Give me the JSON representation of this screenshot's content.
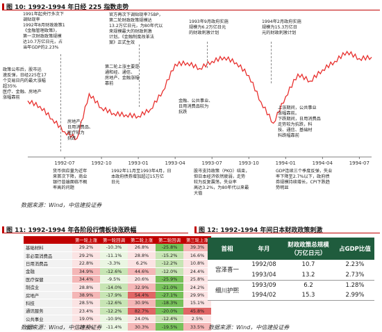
{
  "fig10": {
    "title": "图 10: 1992-1994 年日经 225 指数走势",
    "source": "数据来源：Wind，中信建投证券",
    "annotations": {
      "a1": "1991年起央行多次下\n调贴现率\n1992年8月财政政策1\n《金融管理政策》，\n第一次财政政策规模\n达10.7万亿日元，占\n当年GDP的2.23%",
      "a2": "官方再次下调贴现率75BP，\n第二轮财政政策规模达\n13.2万亿日元，为80年代以\n来规模最大的财政刺激\n计划。《金融制度改革法\n案》正式生效",
      "a3": "1993年9月政府实施\n规模为6.2万亿日元\n的财政刺激计划",
      "a4": "1994年2月政府实施\n规模为15.3万亿日\n元的财政刺激计划",
      "a5": "政策公布后，股市迅\n速反弹，日经225在17\n个交易日内的最大涨幅\n超35%\n医疗、金融、房地产\n涨幅靠前",
      "a6": "第二轮上涨主要是\n通和经、通信、\n房地产、金融涨幅\n靠前",
      "a7": "金融、公共事业、\n日用消费品较为\n抗跌",
      "a8": "房地产、\n日用消费品、\n医疗较为\n抗跌",
      "a9": "上涨期间，公共事业\n涨幅靠前。\n下跌期间，日用消费品\n走势较为抗跌，科\n技、通信、基础材\n料跌幅靠前",
      "b1": "货币供应量为近年\n来首次下降，商业\n银行普遍面临不概\n率高的问题",
      "b2": "1992年11月至1993年4月，日\n本政府债券增加超过15万亿\n日元",
      "b3": "股市支持政策（PKO）结束，\n但日本经济依然疲弱，走势\n较为反复震荡，失业率\n高达3.2%，为80年代以来最\n大值",
      "b4": "GDP连续三个季度反弹，失业\n率下降至2.7%以下，政府债\n券规模持续增长，CPI下跌趋\n势明显"
    },
    "chart_data": {
      "type": "line",
      "x": [
        "1992-04",
        "1992-05",
        "1992-06",
        "1992-07",
        "1992-08",
        "1992-09",
        "1992-10",
        "1992-11",
        "1992-12",
        "1993-01",
        "1993-02",
        "1993-03",
        "1993-04",
        "1993-05",
        "1993-06",
        "1993-07",
        "1993-08",
        "1993-09",
        "1993-10",
        "1993-11",
        "1993-12",
        "1994-01",
        "1994-02",
        "1994-03",
        "1994-04",
        "1994-05",
        "1994-06",
        "1994-07",
        "1994-08"
      ],
      "series": [
        {
          "values": [
            17800,
            17400,
            16500,
            15600,
            15100,
            18300,
            17300,
            16900,
            16800,
            16700,
            17200,
            18500,
            20400,
            20500,
            20100,
            20600,
            20900,
            20500,
            19600,
            17700,
            16200,
            18100,
            19700,
            19200,
            20000,
            20600,
            21300,
            20800,
            20900
          ]
        }
      ],
      "xtick_labels": [
        "1992-07",
        "1992-10",
        "1993-01",
        "1993-04",
        "1993-07",
        "1993-10",
        "1994-01",
        "1994-04",
        "1994-07"
      ],
      "grid": false
    }
  },
  "fig11": {
    "title": "图 11: 1992-1994 年各阶段行情板块涨跌幅",
    "source": "数据来源：Wind，中信建投证券",
    "headers": [
      "",
      "第一轮上涨",
      "第一轮回调",
      "第二轮上涨",
      "第二轮回调",
      "第三轮上涨"
    ],
    "rows": [
      {
        "name": "基础材料",
        "vals": [
          "29.2%",
          "-10.3%",
          "26.8%",
          "-25.8%",
          "39.3%"
        ]
      },
      {
        "name": "非必需消费品",
        "vals": [
          "29.2%",
          "-11.1%",
          "28.8%",
          "-15.2%",
          "16.6%"
        ]
      },
      {
        "name": "日用消费品",
        "vals": [
          "22.8%",
          "-3.3%",
          "6.2%",
          "-12.2%",
          "10.8%"
        ]
      },
      {
        "name": "金融",
        "vals": [
          "34.9%",
          "-12.6%",
          "44.6%",
          "-12.0%",
          "24.4%"
        ]
      },
      {
        "name": "医疗保健",
        "vals": [
          "34.4%",
          "-9.5%",
          "20.6%",
          "-25.9%",
          "25.8%"
        ]
      },
      {
        "name": "制造业",
        "vals": [
          "28.8%",
          "-14.0%",
          "32.9%",
          "-21.0%",
          "24.2%"
        ]
      },
      {
        "name": "房地产",
        "vals": [
          "38.9%",
          "-17.9%",
          "54.4%",
          "-27.1%",
          "29.9%"
        ]
      },
      {
        "name": "科技",
        "vals": [
          "28.5%",
          "-12.6%",
          "30.9%",
          "-18.3%",
          "15.1%"
        ]
      },
      {
        "name": "通讯服务",
        "vals": [
          "23.4%",
          "-12.2%",
          "82.7%",
          "-20.0%",
          "45.8%"
        ]
      },
      {
        "name": "公共事业",
        "vals": [
          "19.0%",
          "-10.9%",
          "24.0%",
          "-12.4%",
          "2.5%"
        ]
      },
      {
        "name": "总计",
        "vals": [
          "29.4%",
          "-11.4%",
          "30.3%",
          "-19.5%",
          "33.5%"
        ]
      }
    ],
    "colors": {
      "header": "#c00000",
      "strong_red": "#e06666",
      "light_red": "#f4b6b6",
      "light_green": "#c7e5b4",
      "green": "#77c15a"
    }
  },
  "fig12": {
    "title": "图 12: 1992-1994 年间日本财政政策刺激",
    "source": "数据来源：Wind，中信建投证券",
    "headers": [
      "首相",
      "年月",
      "财政政策总规模\n（万亿日元）",
      "占GDP比值"
    ],
    "groups": [
      {
        "pm": "宫泽喜一",
        "rows": [
          {
            "ym": "1992/08",
            "size": "10.7",
            "pct": "2.23%"
          },
          {
            "ym": "1993/04",
            "size": "13.2",
            "pct": "2.73%"
          }
        ]
      },
      {
        "pm": "细川护熙",
        "rows": [
          {
            "ym": "1993/09",
            "size": "6.2",
            "pct": "1.28%"
          },
          {
            "ym": "1994/02",
            "size": "15.3",
            "pct": "2.99%"
          }
        ]
      }
    ]
  }
}
